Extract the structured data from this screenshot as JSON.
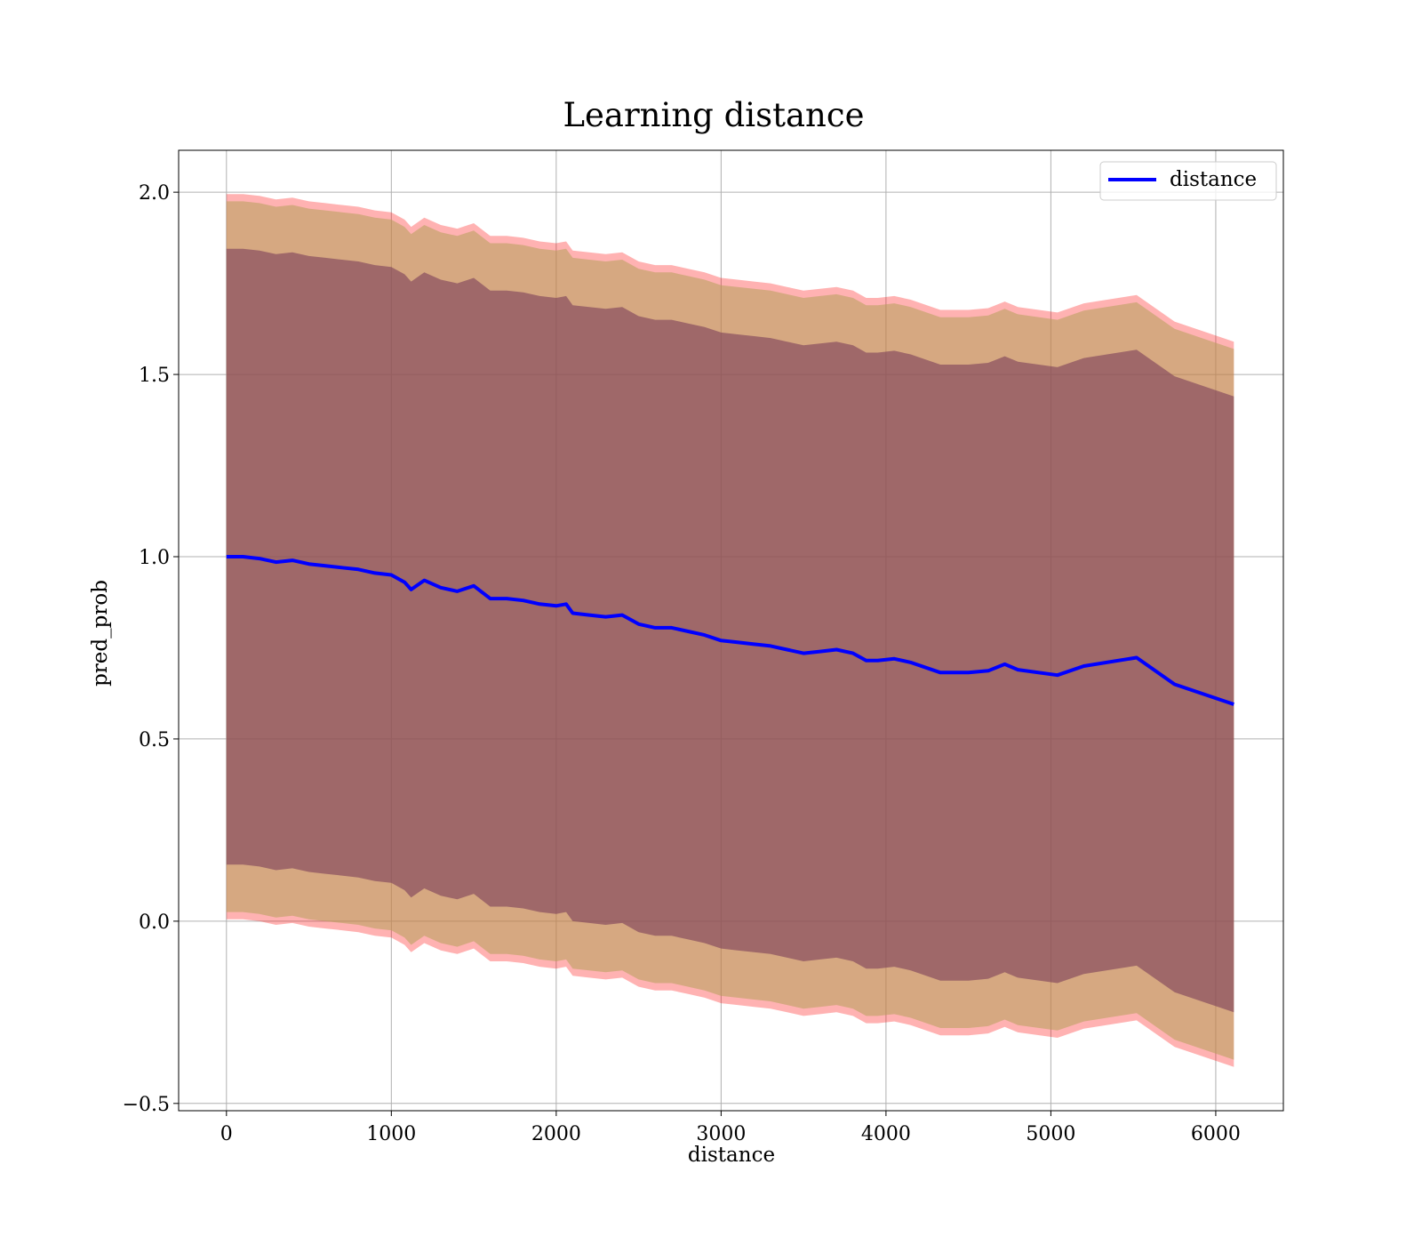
{
  "chart_data": {
    "type": "line",
    "title": "Learning distance",
    "xlabel": "distance",
    "ylabel": "pred_prob",
    "xlim": [
      -290,
      6410
    ],
    "ylim": [
      -0.52,
      2.115
    ],
    "x_ticks": [
      0,
      1000,
      2000,
      3000,
      4000,
      5000,
      6000
    ],
    "y_ticks": [
      -0.5,
      0.0,
      0.5,
      1.0,
      1.5,
      2.0
    ],
    "x_tick_labels": [
      "0",
      "1000",
      "2000",
      "3000",
      "4000",
      "5000",
      "6000"
    ],
    "y_tick_labels": [
      "−0.5",
      "0.0",
      "0.5",
      "1.0",
      "1.5",
      "2.0"
    ],
    "grid": true,
    "legend_position": "upper-right",
    "x": [
      0,
      100,
      200,
      300,
      400,
      500,
      600,
      700,
      800,
      900,
      1000,
      1080,
      1120,
      1200,
      1300,
      1400,
      1500,
      1600,
      1700,
      1800,
      1900,
      2000,
      2060,
      2100,
      2200,
      2300,
      2400,
      2500,
      2600,
      2700,
      2800,
      2900,
      3000,
      3100,
      3200,
      3300,
      3400,
      3500,
      3600,
      3700,
      3800,
      3880,
      3950,
      4050,
      4150,
      4330,
      4500,
      4620,
      4720,
      4800,
      5040,
      5200,
      5520,
      5750,
      6110
    ],
    "series": [
      {
        "name": "distance",
        "role": "line",
        "color": "#0000ff",
        "values": [
          1.0,
          1.0,
          0.995,
          0.985,
          0.99,
          0.98,
          0.975,
          0.97,
          0.965,
          0.955,
          0.95,
          0.93,
          0.91,
          0.935,
          0.915,
          0.905,
          0.92,
          0.885,
          0.885,
          0.88,
          0.87,
          0.865,
          0.87,
          0.845,
          0.84,
          0.835,
          0.84,
          0.815,
          0.805,
          0.805,
          0.795,
          0.785,
          0.77,
          0.765,
          0.76,
          0.755,
          0.745,
          0.735,
          0.74,
          0.745,
          0.735,
          0.715,
          0.715,
          0.72,
          0.71,
          0.682,
          0.682,
          0.687,
          0.705,
          0.69,
          0.675,
          0.7,
          0.723,
          0.65,
          0.595
        ]
      },
      {
        "name": "band_outer",
        "role": "band",
        "color": "#ff0000",
        "opacity": 0.3,
        "lower": [
          0.005,
          0.005,
          0.0,
          -0.01,
          -0.005,
          -0.015,
          -0.02,
          -0.025,
          -0.03,
          -0.04,
          -0.045,
          -0.065,
          -0.085,
          -0.06,
          -0.08,
          -0.09,
          -0.075,
          -0.11,
          -0.11,
          -0.115,
          -0.125,
          -0.13,
          -0.125,
          -0.15,
          -0.155,
          -0.16,
          -0.155,
          -0.18,
          -0.19,
          -0.19,
          -0.2,
          -0.21,
          -0.225,
          -0.23,
          -0.235,
          -0.24,
          -0.25,
          -0.26,
          -0.255,
          -0.25,
          -0.26,
          -0.28,
          -0.28,
          -0.275,
          -0.285,
          -0.313,
          -0.313,
          -0.308,
          -0.29,
          -0.305,
          -0.32,
          -0.295,
          -0.272,
          -0.345,
          -0.4
        ],
        "upper": [
          1.995,
          1.995,
          1.99,
          1.98,
          1.985,
          1.975,
          1.97,
          1.965,
          1.96,
          1.95,
          1.945,
          1.925,
          1.905,
          1.93,
          1.91,
          1.9,
          1.915,
          1.88,
          1.88,
          1.875,
          1.865,
          1.86,
          1.865,
          1.84,
          1.835,
          1.83,
          1.835,
          1.81,
          1.8,
          1.8,
          1.79,
          1.78,
          1.765,
          1.76,
          1.755,
          1.75,
          1.74,
          1.73,
          1.735,
          1.74,
          1.73,
          1.71,
          1.71,
          1.715,
          1.705,
          1.677,
          1.677,
          1.682,
          1.7,
          1.685,
          1.67,
          1.695,
          1.718,
          1.645,
          1.59
        ]
      },
      {
        "name": "band_middle",
        "role": "band",
        "color": "#b5a05a",
        "opacity": 0.55,
        "lower": [
          0.025,
          0.025,
          0.02,
          0.01,
          0.015,
          0.005,
          0.0,
          -0.005,
          -0.01,
          -0.02,
          -0.025,
          -0.045,
          -0.065,
          -0.04,
          -0.06,
          -0.07,
          -0.055,
          -0.09,
          -0.09,
          -0.095,
          -0.105,
          -0.11,
          -0.105,
          -0.13,
          -0.135,
          -0.14,
          -0.135,
          -0.16,
          -0.17,
          -0.17,
          -0.18,
          -0.19,
          -0.205,
          -0.21,
          -0.215,
          -0.22,
          -0.23,
          -0.24,
          -0.235,
          -0.23,
          -0.24,
          -0.26,
          -0.26,
          -0.255,
          -0.265,
          -0.293,
          -0.293,
          -0.288,
          -0.27,
          -0.285,
          -0.3,
          -0.275,
          -0.252,
          -0.325,
          -0.38
        ],
        "upper": [
          1.975,
          1.975,
          1.97,
          1.96,
          1.965,
          1.955,
          1.95,
          1.945,
          1.94,
          1.93,
          1.925,
          1.905,
          1.885,
          1.91,
          1.89,
          1.88,
          1.895,
          1.86,
          1.86,
          1.855,
          1.845,
          1.84,
          1.845,
          1.82,
          1.815,
          1.81,
          1.815,
          1.79,
          1.78,
          1.78,
          1.77,
          1.76,
          1.745,
          1.74,
          1.735,
          1.73,
          1.72,
          1.71,
          1.715,
          1.72,
          1.71,
          1.69,
          1.69,
          1.695,
          1.685,
          1.657,
          1.657,
          1.662,
          1.68,
          1.665,
          1.65,
          1.675,
          1.698,
          1.625,
          1.57
        ]
      },
      {
        "name": "band_inner",
        "role": "band",
        "color": "#7a3e5a",
        "opacity": 0.6,
        "lower": [
          0.155,
          0.155,
          0.15,
          0.14,
          0.145,
          0.135,
          0.13,
          0.125,
          0.12,
          0.11,
          0.105,
          0.085,
          0.065,
          0.09,
          0.07,
          0.06,
          0.075,
          0.04,
          0.04,
          0.035,
          0.025,
          0.02,
          0.025,
          0.0,
          -0.005,
          -0.01,
          -0.005,
          -0.03,
          -0.04,
          -0.04,
          -0.05,
          -0.06,
          -0.075,
          -0.08,
          -0.085,
          -0.09,
          -0.1,
          -0.11,
          -0.105,
          -0.1,
          -0.11,
          -0.13,
          -0.13,
          -0.125,
          -0.135,
          -0.163,
          -0.163,
          -0.158,
          -0.14,
          -0.155,
          -0.17,
          -0.145,
          -0.122,
          -0.195,
          -0.25
        ],
        "upper": [
          1.845,
          1.845,
          1.84,
          1.83,
          1.835,
          1.825,
          1.82,
          1.815,
          1.81,
          1.8,
          1.795,
          1.775,
          1.755,
          1.78,
          1.76,
          1.75,
          1.765,
          1.73,
          1.73,
          1.725,
          1.715,
          1.71,
          1.715,
          1.69,
          1.685,
          1.68,
          1.685,
          1.66,
          1.65,
          1.65,
          1.64,
          1.63,
          1.615,
          1.61,
          1.605,
          1.6,
          1.59,
          1.58,
          1.585,
          1.59,
          1.58,
          1.56,
          1.56,
          1.565,
          1.555,
          1.527,
          1.527,
          1.532,
          1.55,
          1.535,
          1.52,
          1.545,
          1.568,
          1.495,
          1.44
        ]
      }
    ]
  }
}
